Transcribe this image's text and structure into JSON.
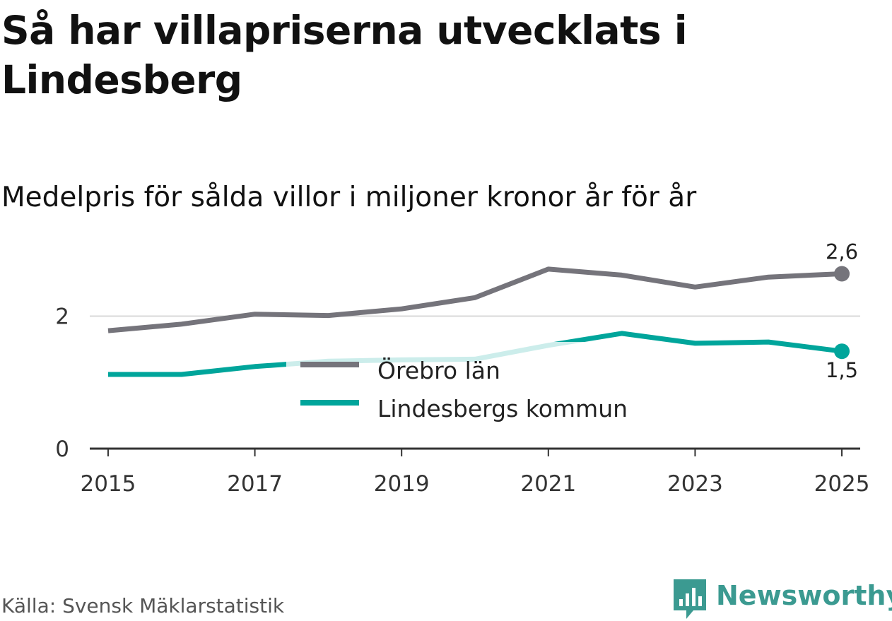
{
  "header": {
    "title": "Så har villapriserna utvecklats i Lindesberg",
    "subtitle": "Medelpris för sålda villor i miljoner kronor år för år"
  },
  "footer": {
    "source": "Källa: Svensk Mäklarstatistik",
    "brand": "Newsworthy"
  },
  "colors": {
    "orebro": "#75747b",
    "lindesberg": "#00a59b",
    "lindesberg_light": "#c9ebe8",
    "grid": "#d9d9d9",
    "axis": "#333333",
    "brand": "#3b9a91"
  },
  "chart_data": {
    "type": "line",
    "title": "Så har villapriserna utvecklats i Lindesberg",
    "subtitle": "Medelpris för sålda villor i miljoner kronor år för år",
    "xlabel": "",
    "ylabel": "",
    "x": [
      2015,
      2016,
      2017,
      2018,
      2019,
      2020,
      2021,
      2022,
      2023,
      2024,
      2025
    ],
    "xlim": [
      2014.75,
      2025.25
    ],
    "ylim": [
      0,
      3.2
    ],
    "x_ticks": [
      2015,
      2017,
      2019,
      2021,
      2023,
      2025
    ],
    "x_tick_labels": [
      "2015",
      "2017",
      "2019",
      "2021",
      "2023",
      "2025"
    ],
    "y_ticks": [
      0,
      2
    ],
    "y_tick_labels": [
      "0",
      "2"
    ],
    "grid": true,
    "legend_position": "center",
    "series": [
      {
        "name": "Örebro län",
        "color": "#75747b",
        "values": [
          1.78,
          1.88,
          2.03,
          2.01,
          2.11,
          2.28,
          2.71,
          2.62,
          2.44,
          2.59,
          2.64
        ],
        "end_label": "2,6"
      },
      {
        "name": "Lindesbergs kommun",
        "color": "#00a59b",
        "values": [
          1.12,
          1.12,
          1.24,
          1.32,
          1.34,
          1.35,
          1.56,
          1.74,
          1.59,
          1.61,
          1.47
        ],
        "end_label": "1,5"
      }
    ]
  }
}
